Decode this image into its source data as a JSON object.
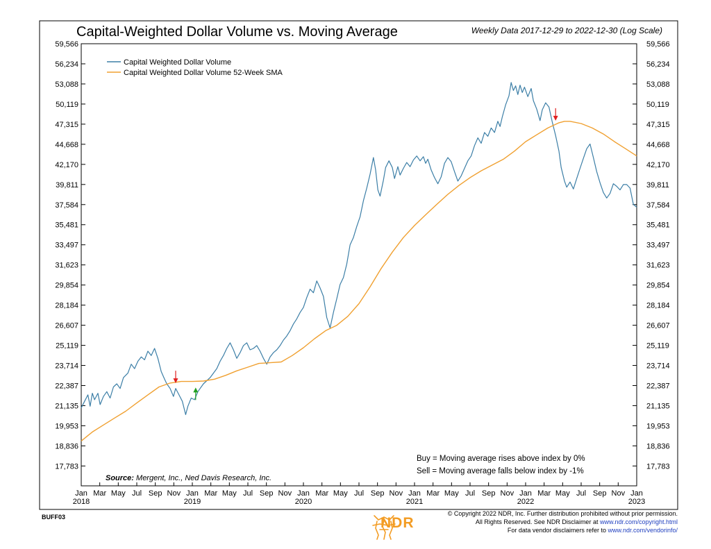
{
  "header": {
    "title": "Capital-Weighted Dollar Volume vs. Moving Average",
    "subtitle": "Weekly Data 2017-12-29 to 2022-12-30 (Log Scale)"
  },
  "chart_data": {
    "type": "line",
    "title": "Capital-Weighted Dollar Volume vs. Moving Average",
    "scale": "log",
    "ylim": [
      16800,
      59566
    ],
    "yticks": [
      "59,566",
      "56,234",
      "53,088",
      "50,119",
      "47,315",
      "44,668",
      "42,170",
      "39,811",
      "37,584",
      "35,481",
      "33,497",
      "31,623",
      "29,854",
      "28,184",
      "26,607",
      "25,119",
      "23,714",
      "22,387",
      "21,135",
      "19,953",
      "18,836",
      "17,783"
    ],
    "ytick_values": [
      59566,
      56234,
      53088,
      50119,
      47315,
      44668,
      42170,
      39811,
      37584,
      35481,
      33497,
      31623,
      29854,
      28184,
      26607,
      25119,
      23714,
      22387,
      21135,
      19953,
      18836,
      17783
    ],
    "xlim": [
      2018.0,
      2023.0
    ],
    "xticks": [
      {
        "label": "Jan",
        "x": 2018.0,
        "year": "2018"
      },
      {
        "label": "Mar",
        "x": 2018.1667
      },
      {
        "label": "May",
        "x": 2018.3333
      },
      {
        "label": "Jul",
        "x": 2018.5
      },
      {
        "label": "Sep",
        "x": 2018.6667
      },
      {
        "label": "Nov",
        "x": 2018.8333
      },
      {
        "label": "Jan",
        "x": 2019.0,
        "year": "2019"
      },
      {
        "label": "Mar",
        "x": 2019.1667
      },
      {
        "label": "May",
        "x": 2019.3333
      },
      {
        "label": "Jul",
        "x": 2019.5
      },
      {
        "label": "Sep",
        "x": 2019.6667
      },
      {
        "label": "Nov",
        "x": 2019.8333
      },
      {
        "label": "Jan",
        "x": 2020.0,
        "year": "2020"
      },
      {
        "label": "Mar",
        "x": 2020.1667
      },
      {
        "label": "May",
        "x": 2020.3333
      },
      {
        "label": "Jul",
        "x": 2020.5
      },
      {
        "label": "Sep",
        "x": 2020.6667
      },
      {
        "label": "Nov",
        "x": 2020.8333
      },
      {
        "label": "Jan",
        "x": 2021.0,
        "year": "2021"
      },
      {
        "label": "Mar",
        "x": 2021.1667
      },
      {
        "label": "May",
        "x": 2021.3333
      },
      {
        "label": "Jul",
        "x": 2021.5
      },
      {
        "label": "Sep",
        "x": 2021.6667
      },
      {
        "label": "Nov",
        "x": 2021.8333
      },
      {
        "label": "Jan",
        "x": 2022.0,
        "year": "2022"
      },
      {
        "label": "Mar",
        "x": 2022.1667
      },
      {
        "label": "May",
        "x": 2022.3333
      },
      {
        "label": "Jul",
        "x": 2022.5
      },
      {
        "label": "Sep",
        "x": 2022.6667
      },
      {
        "label": "Nov",
        "x": 2022.8333
      },
      {
        "label": "Jan",
        "x": 2023.0,
        "year": "2023"
      }
    ],
    "series": [
      {
        "name": "Capital Weighted Dollar Volume",
        "color": "#3b7ea6",
        "points": [
          [
            2018.0,
            21000
          ],
          [
            2018.03,
            21400
          ],
          [
            2018.06,
            21800
          ],
          [
            2018.08,
            21100
          ],
          [
            2018.1,
            21900
          ],
          [
            2018.12,
            21500
          ],
          [
            2018.15,
            21900
          ],
          [
            2018.17,
            21200
          ],
          [
            2018.2,
            21700
          ],
          [
            2018.23,
            22000
          ],
          [
            2018.26,
            21600
          ],
          [
            2018.29,
            22300
          ],
          [
            2018.32,
            22500
          ],
          [
            2018.35,
            22200
          ],
          [
            2018.38,
            22900
          ],
          [
            2018.42,
            23200
          ],
          [
            2018.45,
            23800
          ],
          [
            2018.48,
            23500
          ],
          [
            2018.51,
            24000
          ],
          [
            2018.54,
            24300
          ],
          [
            2018.57,
            24100
          ],
          [
            2018.6,
            24700
          ],
          [
            2018.63,
            24400
          ],
          [
            2018.66,
            24900
          ],
          [
            2018.69,
            24200
          ],
          [
            2018.72,
            23300
          ],
          [
            2018.75,
            22800
          ],
          [
            2018.77,
            22500
          ],
          [
            2018.8,
            22200
          ],
          [
            2018.83,
            21700
          ],
          [
            2018.85,
            22200
          ],
          [
            2018.88,
            21800
          ],
          [
            2018.91,
            21400
          ],
          [
            2018.94,
            20600
          ],
          [
            2018.96,
            21100
          ],
          [
            2018.99,
            21600
          ],
          [
            2019.02,
            21500
          ],
          [
            2019.05,
            22000
          ],
          [
            2019.07,
            22200
          ],
          [
            2019.1,
            22500
          ],
          [
            2019.13,
            22700
          ],
          [
            2019.16,
            22900
          ],
          [
            2019.19,
            23200
          ],
          [
            2019.22,
            23500
          ],
          [
            2019.25,
            24000
          ],
          [
            2019.28,
            24400
          ],
          [
            2019.31,
            24900
          ],
          [
            2019.34,
            25300
          ],
          [
            2019.37,
            24800
          ],
          [
            2019.4,
            24200
          ],
          [
            2019.43,
            24600
          ],
          [
            2019.46,
            25100
          ],
          [
            2019.49,
            25300
          ],
          [
            2019.52,
            24800
          ],
          [
            2019.55,
            24900
          ],
          [
            2019.58,
            25100
          ],
          [
            2019.61,
            24700
          ],
          [
            2019.64,
            24200
          ],
          [
            2019.67,
            23800
          ],
          [
            2019.7,
            24300
          ],
          [
            2019.73,
            24600
          ],
          [
            2019.76,
            24800
          ],
          [
            2019.79,
            25100
          ],
          [
            2019.82,
            25500
          ],
          [
            2019.85,
            25800
          ],
          [
            2019.88,
            26200
          ],
          [
            2019.91,
            26700
          ],
          [
            2019.94,
            27100
          ],
          [
            2019.97,
            27600
          ],
          [
            2020.0,
            28000
          ],
          [
            2020.03,
            28800
          ],
          [
            2020.06,
            29500
          ],
          [
            2020.09,
            29200
          ],
          [
            2020.12,
            30200
          ],
          [
            2020.15,
            29600
          ],
          [
            2020.18,
            28900
          ],
          [
            2020.21,
            27200
          ],
          [
            2020.24,
            26400
          ],
          [
            2020.27,
            27600
          ],
          [
            2020.3,
            28700
          ],
          [
            2020.33,
            29900
          ],
          [
            2020.36,
            30500
          ],
          [
            2020.39,
            31700
          ],
          [
            2020.42,
            33500
          ],
          [
            2020.45,
            34200
          ],
          [
            2020.48,
            35300
          ],
          [
            2020.51,
            36300
          ],
          [
            2020.54,
            38000
          ],
          [
            2020.57,
            39400
          ],
          [
            2020.6,
            41000
          ],
          [
            2020.63,
            43000
          ],
          [
            2020.65,
            41500
          ],
          [
            2020.67,
            39200
          ],
          [
            2020.69,
            38500
          ],
          [
            2020.72,
            40300
          ],
          [
            2020.74,
            41800
          ],
          [
            2020.77,
            42600
          ],
          [
            2020.8,
            41800
          ],
          [
            2020.82,
            40500
          ],
          [
            2020.85,
            41900
          ],
          [
            2020.87,
            40900
          ],
          [
            2020.9,
            41700
          ],
          [
            2020.93,
            42400
          ],
          [
            2020.96,
            41900
          ],
          [
            2020.99,
            42700
          ],
          [
            2021.02,
            43200
          ],
          [
            2021.05,
            42600
          ],
          [
            2021.08,
            43100
          ],
          [
            2021.1,
            42300
          ],
          [
            2021.12,
            42800
          ],
          [
            2021.15,
            41500
          ],
          [
            2021.18,
            40600
          ],
          [
            2021.21,
            39900
          ],
          [
            2021.24,
            40700
          ],
          [
            2021.27,
            42300
          ],
          [
            2021.3,
            43000
          ],
          [
            2021.33,
            42500
          ],
          [
            2021.36,
            41300
          ],
          [
            2021.39,
            40200
          ],
          [
            2021.42,
            40800
          ],
          [
            2021.45,
            41700
          ],
          [
            2021.48,
            42600
          ],
          [
            2021.51,
            43200
          ],
          [
            2021.54,
            44500
          ],
          [
            2021.57,
            45500
          ],
          [
            2021.6,
            44800
          ],
          [
            2021.63,
            46200
          ],
          [
            2021.66,
            45700
          ],
          [
            2021.69,
            46800
          ],
          [
            2021.72,
            46200
          ],
          [
            2021.75,
            47700
          ],
          [
            2021.77,
            47000
          ],
          [
            2021.79,
            48300
          ],
          [
            2021.82,
            50000
          ],
          [
            2021.85,
            51300
          ],
          [
            2021.87,
            53300
          ],
          [
            2021.89,
            52100
          ],
          [
            2021.91,
            52800
          ],
          [
            2021.93,
            51500
          ],
          [
            2021.95,
            52900
          ],
          [
            2021.97,
            51800
          ],
          [
            2021.99,
            52600
          ],
          [
            2022.02,
            51200
          ],
          [
            2022.05,
            52400
          ],
          [
            2022.07,
            50600
          ],
          [
            2022.1,
            49400
          ],
          [
            2022.13,
            47800
          ],
          [
            2022.15,
            49300
          ],
          [
            2022.18,
            50300
          ],
          [
            2022.21,
            49700
          ],
          [
            2022.24,
            47600
          ],
          [
            2022.27,
            45800
          ],
          [
            2022.3,
            43800
          ],
          [
            2022.32,
            41800
          ],
          [
            2022.35,
            40200
          ],
          [
            2022.37,
            39500
          ],
          [
            2022.4,
            40100
          ],
          [
            2022.43,
            39300
          ],
          [
            2022.46,
            40500
          ],
          [
            2022.49,
            41700
          ],
          [
            2022.52,
            42900
          ],
          [
            2022.55,
            44100
          ],
          [
            2022.58,
            44700
          ],
          [
            2022.61,
            43000
          ],
          [
            2022.64,
            41300
          ],
          [
            2022.67,
            40000
          ],
          [
            2022.7,
            38900
          ],
          [
            2022.73,
            38300
          ],
          [
            2022.76,
            38800
          ],
          [
            2022.79,
            39900
          ],
          [
            2022.82,
            39600
          ],
          [
            2022.85,
            39200
          ],
          [
            2022.88,
            39800
          ],
          [
            2022.91,
            39800
          ],
          [
            2022.94,
            39400
          ],
          [
            2022.97,
            37600
          ],
          [
            2023.0,
            37300
          ]
        ]
      },
      {
        "name": "Capital Weighted Dollar Volume 52-Week SMA",
        "color": "#f0a030",
        "points": [
          [
            2018.0,
            19100
          ],
          [
            2018.1,
            19600
          ],
          [
            2018.2,
            20000
          ],
          [
            2018.3,
            20400
          ],
          [
            2018.4,
            20800
          ],
          [
            2018.5,
            21300
          ],
          [
            2018.6,
            21800
          ],
          [
            2018.7,
            22300
          ],
          [
            2018.8,
            22550
          ],
          [
            2018.9,
            22650
          ],
          [
            2019.0,
            22650
          ],
          [
            2019.1,
            22680
          ],
          [
            2019.2,
            22800
          ],
          [
            2019.3,
            23050
          ],
          [
            2019.4,
            23350
          ],
          [
            2019.5,
            23600
          ],
          [
            2019.6,
            23850
          ],
          [
            2019.7,
            23900
          ],
          [
            2019.8,
            23950
          ],
          [
            2019.9,
            24400
          ],
          [
            2020.0,
            24950
          ],
          [
            2020.1,
            25600
          ],
          [
            2020.2,
            26200
          ],
          [
            2020.3,
            26600
          ],
          [
            2020.4,
            27300
          ],
          [
            2020.5,
            28300
          ],
          [
            2020.6,
            29700
          ],
          [
            2020.7,
            31300
          ],
          [
            2020.8,
            32800
          ],
          [
            2020.9,
            34200
          ],
          [
            2021.0,
            35400
          ],
          [
            2021.1,
            36500
          ],
          [
            2021.2,
            37600
          ],
          [
            2021.3,
            38700
          ],
          [
            2021.4,
            39700
          ],
          [
            2021.5,
            40600
          ],
          [
            2021.6,
            41400
          ],
          [
            2021.7,
            42100
          ],
          [
            2021.8,
            42800
          ],
          [
            2021.9,
            43800
          ],
          [
            2022.0,
            45000
          ],
          [
            2022.1,
            45900
          ],
          [
            2022.2,
            46800
          ],
          [
            2022.3,
            47500
          ],
          [
            2022.35,
            47700
          ],
          [
            2022.4,
            47700
          ],
          [
            2022.5,
            47400
          ],
          [
            2022.6,
            46800
          ],
          [
            2022.7,
            46000
          ],
          [
            2022.8,
            45000
          ],
          [
            2022.9,
            44100
          ],
          [
            2023.0,
            43200
          ]
        ]
      }
    ],
    "signals": [
      {
        "type": "sell",
        "x": 2018.85,
        "y": 22450,
        "color": "#e02020"
      },
      {
        "type": "buy",
        "x": 2019.03,
        "y": 22350,
        "color": "#20a020"
      },
      {
        "type": "sell",
        "x": 2022.27,
        "y": 47600,
        "color": "#e02020"
      }
    ],
    "legend": {
      "placement": "top-left",
      "entries": [
        "Capital Weighted Dollar Volume",
        "Capital Weighted Dollar Volume 52-Week SMA"
      ]
    },
    "annotations": {
      "buy": "Buy = Moving average rises above index by 0%",
      "sell": "Sell = Moving average falls below index by -1%"
    }
  },
  "source": {
    "label": "Source:",
    "text": "Mergent, Inc., Ned Davis Research, Inc."
  },
  "footer": {
    "code": "BUFF03",
    "line1": "© Copyright 2022 NDR, Inc. Further distribution prohibited without prior permission.",
    "line2_pre": "All Rights Reserved. See NDR Disclaimer at ",
    "line2_url": "www.ndr.com/copyright.html",
    "line3_pre": "For data vendor disclaimers refer to ",
    "line3_url": "www.ndr.com/vendorinfo/",
    "logo_text": "NDR"
  }
}
